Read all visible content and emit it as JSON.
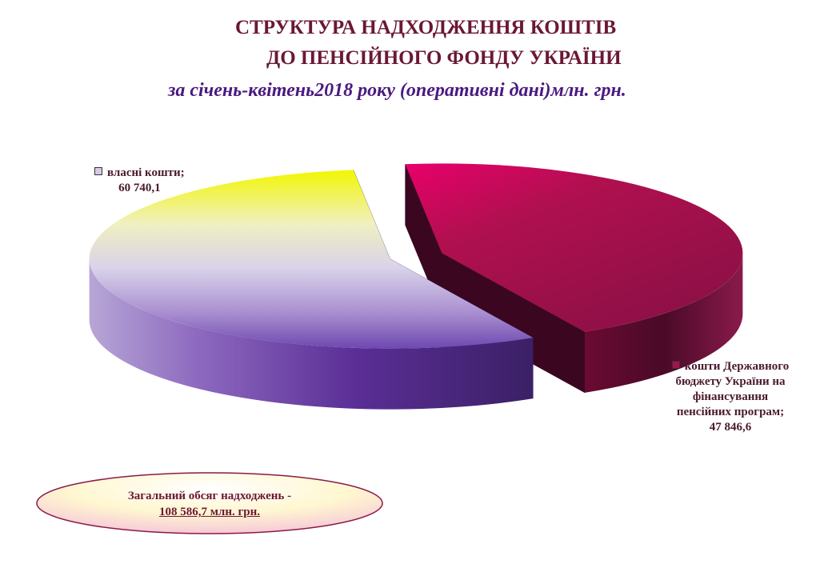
{
  "header": {
    "title_line1": "СТРУКТУРА  НАДХОДЖЕННЯ КОШТІВ",
    "title_line2": "ДО ПЕНСІЙНОГО ФОНДУ УКРАЇНИ",
    "subtitle": "за  січень-квітень2018 року (оперативні дані)млн. грн."
  },
  "chart_data": {
    "type": "pie",
    "title": "СТРУКТУРА  НАДХОДЖЕННЯ КОШТІВ ДО ПЕНСІЙНОГО ФОНДУ УКРАЇНИ",
    "subtitle": "за  січень-квітень2018 року (оперативні дані)млн. грн.",
    "three_d": true,
    "exploded": true,
    "slices": [
      {
        "label": "власні кошти;",
        "value_text": "60 740,1",
        "value": 60740.1,
        "color": "#7d4fb0"
      },
      {
        "label": "кошти Державного бюджету України на фінансування пенсійних програм;",
        "label_lines": [
          "кошти Державного",
          "бюджету України на",
          "фінансування",
          "пенсійних програм;"
        ],
        "value_text": "47 846,6",
        "value": 47846.6,
        "color": "#a3124f"
      }
    ],
    "total": {
      "label": "Загальний обсяг надходжень -",
      "value_text": "108 586,7 млн. грн."
    }
  }
}
